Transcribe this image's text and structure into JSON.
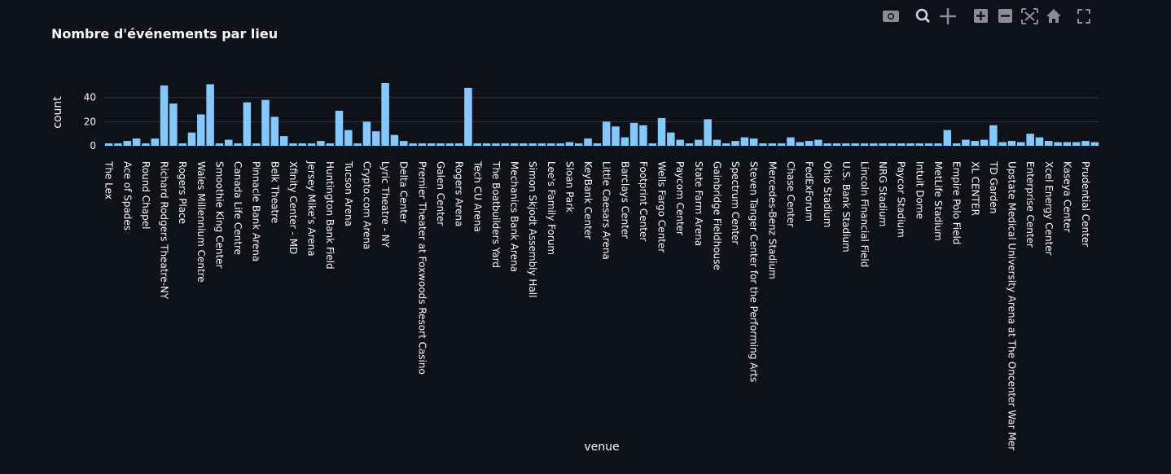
{
  "chart_data": {
    "type": "bar",
    "title": "Nombre d'événements par lieu",
    "x_label": "venue",
    "y_label": "count",
    "categories": [
      "The Lex",
      null,
      "Ace of Spades",
      null,
      "Round Chapel",
      null,
      "Richard Rodgers Theatre-NY",
      null,
      "Rogers Place",
      null,
      "Wales Millennium Centre",
      null,
      "Smoothie King Center",
      null,
      "Canada Life Centre",
      null,
      "Pinnacle Bank Arena",
      null,
      "Belk Theatre",
      null,
      "Xfinity Center - MD",
      null,
      "Jersey Mike's Arena",
      null,
      "Huntington Bank Field",
      null,
      "Tucson Arena",
      null,
      "Crypto.com Arena",
      null,
      "Lyric Theatre - NY",
      null,
      "Delta Center",
      null,
      "Premier Theater at Foxwoods Resort Casino",
      null,
      "Galen Center",
      null,
      "Rogers Arena",
      null,
      "Tech CU Arena",
      null,
      "The Boatbuilders Yard",
      null,
      "Mechanics Bank Arena",
      null,
      "Simon Skjodt Assembly Hall",
      null,
      "Lee's Family Forum",
      null,
      "Sloan Park",
      null,
      "KeyBank Center",
      null,
      "Little Caesars Arena",
      null,
      "Barclays Center",
      null,
      "Footprint Center",
      null,
      "Wells Fargo Center",
      null,
      "Paycom Center",
      null,
      "State Farm Arena",
      null,
      "Gainbridge Fieldhouse",
      null,
      "Spectrum Center",
      null,
      "Steven Tanger Center for the Performing Arts",
      null,
      "Mercedes-Benz Stadium",
      null,
      "Chase Center",
      null,
      "FedExForum",
      null,
      "Ohio Stadium",
      null,
      "U.S. Bank Stadium",
      null,
      "Lincoln Financial Field",
      null,
      "NRG Stadium",
      null,
      "Paycor Stadium",
      null,
      "Intuit Dome",
      null,
      "MetLife Stadium",
      null,
      "Empire Polo Field",
      null,
      "XL CENTER",
      null,
      "TD Garden",
      null,
      "Upstate Medical University Arena at The Oncenter War Mer",
      null,
      "Enterprise Center",
      null,
      "Xcel Energy Center",
      null,
      "Kaseya Center",
      null,
      "Prudential Center",
      null
    ],
    "values": [
      2,
      2,
      4,
      6,
      2,
      6,
      50,
      35,
      2,
      11,
      26,
      51,
      2,
      5,
      2,
      36,
      2,
      38,
      24,
      8,
      2,
      2,
      2,
      4,
      2,
      29,
      13,
      2,
      20,
      12,
      52,
      9,
      4,
      2,
      2,
      2,
      2,
      2,
      2,
      48,
      2,
      2,
      2,
      2,
      2,
      2,
      2,
      2,
      2,
      2,
      3,
      2,
      6,
      2,
      20,
      16,
      7,
      19,
      17,
      2,
      23,
      11,
      5,
      2,
      5,
      22,
      5,
      2,
      4,
      7,
      6,
      2,
      2,
      2,
      7,
      3,
      4,
      5,
      2,
      2,
      2,
      2,
      2,
      2,
      2,
      2,
      2,
      2,
      2,
      2,
      2,
      13,
      2,
      5,
      4,
      5,
      17,
      3,
      4,
      3,
      10,
      7,
      4,
      3,
      3,
      3,
      4,
      3
    ],
    "color": "#83c9ff",
    "ylim": [
      0,
      54
    ],
    "yticks": [
      0,
      20,
      40
    ],
    "grid": true
  }
}
